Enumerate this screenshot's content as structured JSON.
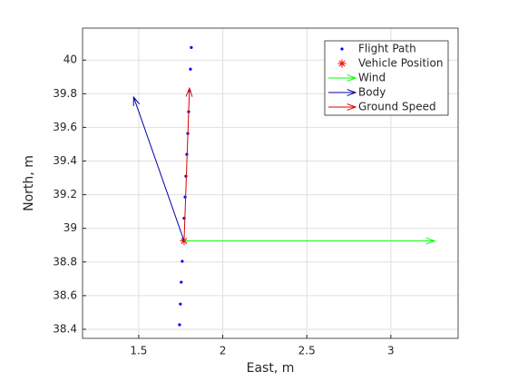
{
  "chart_data": {
    "type": "scatter",
    "xlabel": "East, m",
    "ylabel": "North, m",
    "xlim": [
      1.166,
      3.4
    ],
    "ylim": [
      38.346,
      40.19
    ],
    "xticks": [
      1.5,
      2,
      2.5,
      3
    ],
    "yticks": [
      38.4,
      38.6,
      38.8,
      39,
      39.2,
      39.4,
      39.6,
      39.8,
      40
    ],
    "grid": true,
    "legend": "northeast",
    "series": [
      {
        "name": "Flight Path",
        "color": "#0000ff",
        "marker": ".",
        "x": [
          1.743,
          1.748,
          1.753,
          1.759,
          1.765,
          1.77,
          1.776,
          1.781,
          1.786,
          1.792,
          1.797,
          1.802,
          1.808,
          1.813
        ],
        "y": [
          38.427,
          38.55,
          38.68,
          38.804,
          38.928,
          39.06,
          39.186,
          39.31,
          39.44,
          39.564,
          39.693,
          39.817,
          39.946,
          40.075
        ]
      },
      {
        "name": "Vehicle Position",
        "color": "#ff0000",
        "marker": "*",
        "x": [
          1.77
        ],
        "y": [
          38.925
        ]
      },
      {
        "name": "Wind",
        "color": "#00ff00",
        "x": [
          1.77
        ],
        "y": [
          38.925
        ],
        "u": [
          1.49
        ],
        "v": [
          0
        ]
      },
      {
        "name": "Body",
        "color": "#0000aa",
        "x": [
          1.77
        ],
        "y": [
          38.925
        ],
        "u": [
          -0.3
        ],
        "v": [
          0.855
        ]
      },
      {
        "name": "Ground Speed",
        "color": "#dd0000",
        "x": [
          1.77
        ],
        "y": [
          38.925
        ],
        "u": [
          0.032
        ],
        "v": [
          0.908
        ]
      }
    ]
  }
}
